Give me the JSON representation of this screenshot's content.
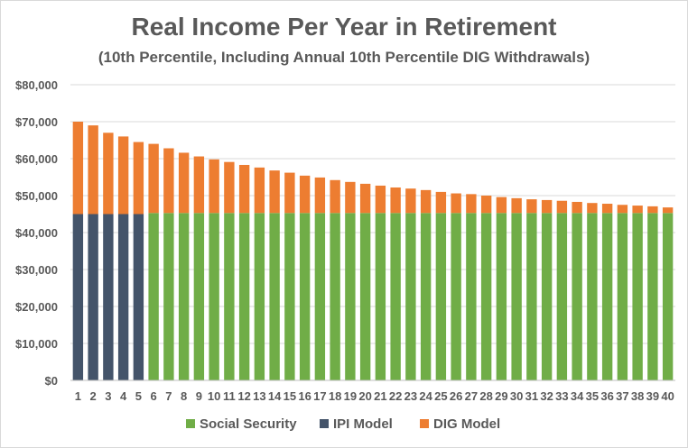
{
  "chart_data": {
    "type": "bar",
    "stacked": true,
    "title": "Real Income Per Year in Retirement",
    "subtitle": "(10th Percentile, Including Annual 10th Percentile DIG Withdrawals)",
    "xlabel": "",
    "ylabel": "",
    "ylim": [
      0,
      80000
    ],
    "yticks": [
      "$0",
      "$10,000",
      "$20,000",
      "$30,000",
      "$40,000",
      "$50,000",
      "$60,000",
      "$70,000",
      "$80,000"
    ],
    "categories": [
      "1",
      "2",
      "3",
      "4",
      "5",
      "6",
      "7",
      "8",
      "9",
      "10",
      "11",
      "12",
      "13",
      "14",
      "15",
      "16",
      "17",
      "18",
      "19",
      "20",
      "21",
      "22",
      "23",
      "24",
      "25",
      "26",
      "27",
      "28",
      "29",
      "30",
      "31",
      "32",
      "33",
      "34",
      "35",
      "36",
      "37",
      "38",
      "39",
      "40"
    ],
    "grid": true,
    "legend_position": "bottom",
    "series": [
      {
        "name": "Social Security",
        "color": "#70ad47",
        "values": [
          0,
          0,
          0,
          0,
          0,
          45300,
          45300,
          45300,
          45300,
          45300,
          45300,
          45300,
          45300,
          45300,
          45300,
          45300,
          45300,
          45300,
          45300,
          45300,
          45300,
          45300,
          45300,
          45300,
          45300,
          45300,
          45300,
          45300,
          45300,
          45300,
          45300,
          45300,
          45300,
          45300,
          45300,
          45300,
          45300,
          45300,
          45300,
          45300
        ]
      },
      {
        "name": "IPI Model",
        "color": "#44546a",
        "values": [
          45000,
          45000,
          45000,
          45000,
          45000,
          0,
          0,
          0,
          0,
          0,
          0,
          0,
          0,
          0,
          0,
          0,
          0,
          0,
          0,
          0,
          0,
          0,
          0,
          0,
          0,
          0,
          0,
          0,
          0,
          0,
          0,
          0,
          0,
          0,
          0,
          0,
          0,
          0,
          0,
          0
        ]
      },
      {
        "name": "DIG Model",
        "color": "#ed7d31",
        "values": [
          25000,
          24000,
          22000,
          21000,
          19500,
          18700,
          17500,
          16300,
          15300,
          14500,
          13800,
          13000,
          12300,
          11500,
          10900,
          10100,
          9600,
          8900,
          8400,
          7900,
          7400,
          6900,
          6600,
          6200,
          5700,
          5300,
          5100,
          4700,
          4300,
          4000,
          3700,
          3500,
          3300,
          3000,
          2700,
          2500,
          2200,
          2000,
          1800,
          1500
        ]
      }
    ]
  }
}
